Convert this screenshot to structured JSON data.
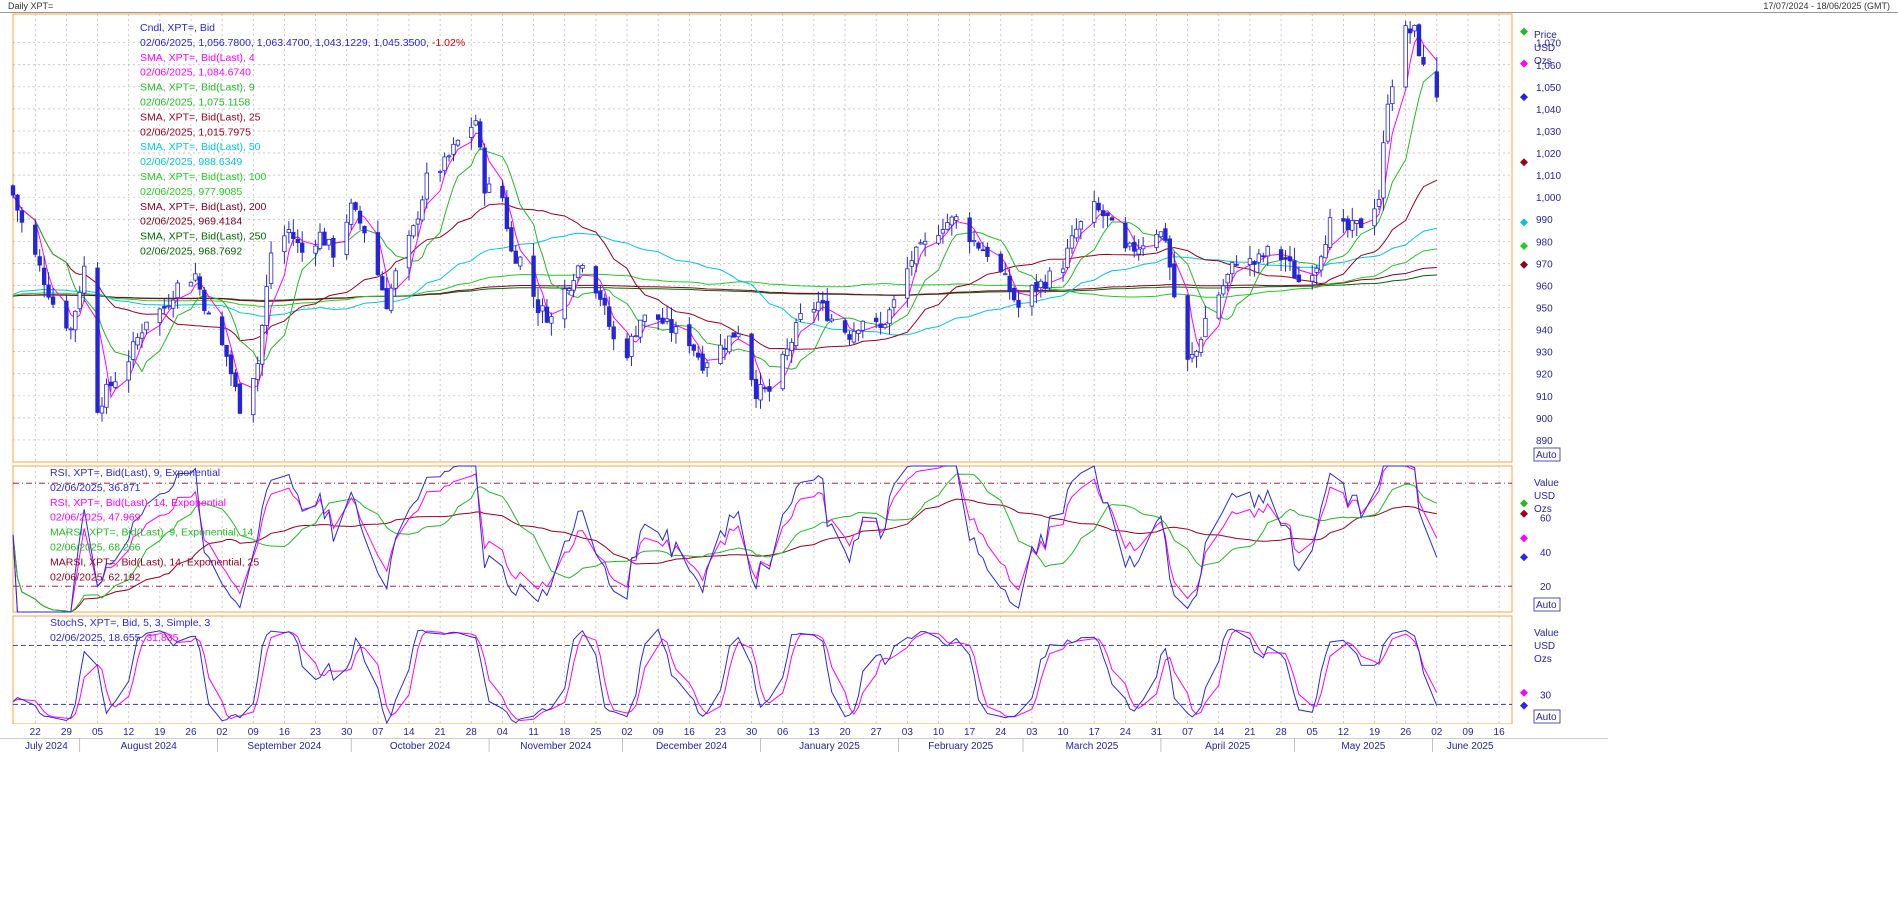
{
  "window": {
    "title": "Daily XPT=",
    "range": "17/07/2024 - 18/06/2025 (GMT)"
  },
  "colors": {
    "bg": "#ffffff",
    "candle": "#2525d8",
    "sma4": "#ff00ff",
    "sma9": "#22bb22",
    "sma25": "#990022",
    "sma50": "#00c8d8",
    "sma100": "#22cc22",
    "sma200": "#880022",
    "sma250": "#006600",
    "rsi9": "#2a2ae0",
    "rsi14": "#ff00ff",
    "marsi9": "#22bb22",
    "marsi14": "#990022",
    "stoch_k": "#2a2ae0",
    "stoch_d": "#ff00ff",
    "grid": "#b8b8b8",
    "panel_border": "#ffa040",
    "ref_line": "#990033",
    "stoch_ref": "#3030c0"
  },
  "price_panel": {
    "legend": [
      {
        "label": "Cndl, XPT=, Bid",
        "color": "#2525d8"
      },
      {
        "label": "02/06/2025, 1,056.7800, 1,063.4700, 1,043.1229, 1,045.3500,",
        "extra": "-1.02%",
        "color": "#2525d8",
        "extra_color": "#e00000"
      },
      {
        "label": "SMA, XPT=, Bid(Last),  4",
        "color": "#ff00ff"
      },
      {
        "label": "02/06/2025, 1,084.6740",
        "color": "#ff00ff"
      },
      {
        "label": "SMA, XPT=, Bid(Last),  9",
        "color": "#22bb22"
      },
      {
        "label": "02/06/2025, 1,075.1158",
        "color": "#22bb22"
      },
      {
        "label": "SMA, XPT=, Bid(Last),  25",
        "color": "#990022"
      },
      {
        "label": "02/06/2025, 1,015.7975",
        "color": "#990022"
      },
      {
        "label": "SMA, XPT=, Bid(Last),  50",
        "color": "#00c8d8"
      },
      {
        "label": "02/06/2025, 988.6349",
        "color": "#00c8d8"
      },
      {
        "label": "SMA, XPT=, Bid(Last),  100",
        "color": "#22cc22"
      },
      {
        "label": "02/06/2025, 977.9085",
        "color": "#22cc22"
      },
      {
        "label": "SMA, XPT=, Bid(Last),  200",
        "color": "#880022"
      },
      {
        "label": "02/06/2025, 969.4184",
        "color": "#880022"
      },
      {
        "label": "SMA, XPT=, Bid(Last),  250",
        "color": "#006600"
      },
      {
        "label": "02/06/2025, 968.7692",
        "color": "#006600"
      }
    ],
    "axis_title": [
      "Price",
      "USD",
      "Ozs"
    ],
    "auto_label": "Auto"
  },
  "rsi_panel": {
    "legend": [
      {
        "label": "RSI, XPT=, Bid(Last),  9, Exponential",
        "color": "#2a2ae0"
      },
      {
        "label": "02/06/2025, 36.871",
        "color": "#2a2ae0"
      },
      {
        "label": "RSI, XPT=, Bid(Last),  14, Exponential",
        "color": "#ff00ff"
      },
      {
        "label": "02/06/2025, 47.969",
        "color": "#ff00ff"
      },
      {
        "label": "MARSI, XPT=, Bid(Last),  9, Exponential, 14",
        "color": "#22bb22"
      },
      {
        "label": "02/06/2025, 68.266",
        "color": "#22bb22"
      },
      {
        "label": "MARSI, XPT=, Bid(Last),  14, Exponential, 25",
        "color": "#990022"
      },
      {
        "label": "02/06/2025, 62.192",
        "color": "#990022"
      }
    ],
    "axis_title": [
      "Value",
      "USD",
      "Ozs"
    ],
    "auto_label": "Auto"
  },
  "stoch_panel": {
    "legend": [
      {
        "label": "StochS, XPT=, Bid,  5, 3, Simple, 3",
        "color": "#2a2ae0"
      },
      {
        "label": "02/06/2025, 18.655,",
        "extra": "31.835",
        "color": "#2a2ae0",
        "extra_color": "#ff00ff"
      }
    ],
    "axis_title": [
      "Value",
      "USD",
      "Ozs"
    ],
    "auto_label": "Auto"
  },
  "chart_data": [
    {
      "type": "candlestick",
      "title": "Cndl, XPT=, Bid",
      "x_day_labels": [
        "22",
        "29",
        "05",
        "12",
        "19",
        "26",
        "02",
        "09",
        "16",
        "23",
        "30",
        "07",
        "14",
        "21",
        "28",
        "04",
        "11",
        "18",
        "25",
        "02",
        "09",
        "16",
        "23",
        "30",
        "06",
        "13",
        "20",
        "27",
        "03",
        "10",
        "17",
        "24",
        "03",
        "10",
        "17",
        "24",
        "31",
        "07",
        "14",
        "21",
        "28",
        "05",
        "12",
        "19",
        "26",
        "02",
        "09",
        "16"
      ],
      "x_month_labels": [
        "July 2024",
        "August 2024",
        "September 2024",
        "October 2024",
        "November 2024",
        "December 2024",
        "January 2025",
        "February 2025",
        "March 2025",
        "April 2025",
        "May 2025",
        "June 2025"
      ],
      "y_ticks": [
        890,
        900,
        910,
        920,
        930,
        940,
        950,
        960,
        970,
        980,
        990,
        1000,
        1010,
        1020,
        1030,
        1040,
        1050,
        1060,
        1070
      ],
      "y_tick_labels": [
        "890",
        "900",
        "910",
        "920",
        "930",
        "940",
        "950",
        "960",
        "970",
        "980",
        "990",
        "1,000",
        "1,010",
        "1,020",
        "1,030",
        "1,040",
        "1,050",
        "1,060",
        "1,070"
      ],
      "ylim": [
        880,
        1083
      ],
      "x_axis": {
        "start": "2024-07-17",
        "end": "2025-06-18"
      },
      "last_bar": {
        "date": "02/06/2025",
        "open": 1056.78,
        "high": 1063.47,
        "low": 1043.1229,
        "close": 1045.35,
        "change": "-1.02%"
      },
      "close_anchors": [
        [
          "2024-07-17",
          1001
        ],
        [
          "2024-07-19",
          988
        ],
        [
          "2024-07-23",
          968
        ],
        [
          "2024-07-26",
          952
        ],
        [
          "2024-07-30",
          940
        ],
        [
          "2024-08-02",
          968
        ],
        [
          "2024-08-05",
          905
        ],
        [
          "2024-08-07",
          912
        ],
        [
          "2024-08-12",
          927
        ],
        [
          "2024-08-16",
          945
        ],
        [
          "2024-08-20",
          950
        ],
        [
          "2024-08-23",
          960
        ],
        [
          "2024-08-27",
          965
        ],
        [
          "2024-08-30",
          945
        ],
        [
          "2024-09-03",
          928
        ],
        [
          "2024-09-06",
          905
        ],
        [
          "2024-09-10",
          925
        ],
        [
          "2024-09-13",
          975
        ],
        [
          "2024-09-17",
          985
        ],
        [
          "2024-09-20",
          975
        ],
        [
          "2024-09-24",
          983
        ],
        [
          "2024-09-27",
          975
        ],
        [
          "2024-10-01",
          995
        ],
        [
          "2024-10-04",
          985
        ],
        [
          "2024-10-09",
          952
        ],
        [
          "2024-10-11",
          965
        ],
        [
          "2024-10-15",
          985
        ],
        [
          "2024-10-18",
          1008
        ],
        [
          "2024-10-22",
          1015
        ],
        [
          "2024-10-25",
          1025
        ],
        [
          "2024-10-29",
          1035
        ],
        [
          "2024-10-31",
          1005
        ],
        [
          "2024-11-04",
          1000
        ],
        [
          "2024-11-06",
          975
        ],
        [
          "2024-11-08",
          972
        ],
        [
          "2024-11-12",
          950
        ],
        [
          "2024-11-15",
          945
        ],
        [
          "2024-11-19",
          962
        ],
        [
          "2024-11-22",
          972
        ],
        [
          "2024-11-26",
          955
        ],
        [
          "2024-11-29",
          935
        ],
        [
          "2024-12-02",
          930
        ],
        [
          "2024-12-05",
          945
        ],
        [
          "2024-12-09",
          945
        ],
        [
          "2024-12-12",
          940
        ],
        [
          "2024-12-16",
          935
        ],
        [
          "2024-12-19",
          925
        ],
        [
          "2024-12-23",
          932
        ],
        [
          "2024-12-27",
          940
        ],
        [
          "2024-12-31",
          912
        ],
        [
          "2025-01-03",
          912
        ],
        [
          "2025-01-07",
          930
        ],
        [
          "2025-01-10",
          945
        ],
        [
          "2025-01-14",
          952
        ],
        [
          "2025-01-17",
          945
        ],
        [
          "2025-01-21",
          938
        ],
        [
          "2025-01-24",
          945
        ],
        [
          "2025-01-28",
          940
        ],
        [
          "2025-01-31",
          952
        ],
        [
          "2025-02-04",
          972
        ],
        [
          "2025-02-07",
          978
        ],
        [
          "2025-02-11",
          988
        ],
        [
          "2025-02-14",
          990
        ],
        [
          "2025-02-18",
          980
        ],
        [
          "2025-02-21",
          975
        ],
        [
          "2025-02-25",
          962
        ],
        [
          "2025-02-28",
          950
        ],
        [
          "2025-03-03",
          958
        ],
        [
          "2025-03-06",
          962
        ],
        [
          "2025-03-10",
          970
        ],
        [
          "2025-03-13",
          985
        ],
        [
          "2025-03-17",
          995
        ],
        [
          "2025-03-20",
          990
        ],
        [
          "2025-03-24",
          975
        ],
        [
          "2025-03-27",
          978
        ],
        [
          "2025-03-31",
          985
        ],
        [
          "2025-04-02",
          982
        ],
        [
          "2025-04-04",
          955
        ],
        [
          "2025-04-07",
          925
        ],
        [
          "2025-04-09",
          930
        ],
        [
          "2025-04-11",
          945
        ],
        [
          "2025-04-15",
          960
        ],
        [
          "2025-04-18",
          972
        ],
        [
          "2025-04-22",
          970
        ],
        [
          "2025-04-25",
          975
        ],
        [
          "2025-04-29",
          972
        ],
        [
          "2025-05-02",
          962
        ],
        [
          "2025-05-06",
          970
        ],
        [
          "2025-05-09",
          988
        ],
        [
          "2025-05-13",
          985
        ],
        [
          "2025-05-16",
          988
        ],
        [
          "2025-05-20",
          1000
        ],
        [
          "2025-05-22",
          1045
        ],
        [
          "2025-05-26",
          1075
        ],
        [
          "2025-05-28",
          1075
        ],
        [
          "2025-05-30",
          1058
        ],
        [
          "2025-06-02",
          1045
        ]
      ],
      "sma_series": [
        {
          "name": "SMA 4",
          "last": 1084.674
        },
        {
          "name": "SMA 9",
          "last": 1075.1158
        },
        {
          "name": "SMA 25",
          "last": 1015.7975
        },
        {
          "name": "SMA 50",
          "last": 988.6349
        },
        {
          "name": "SMA 100",
          "last": 977.9085
        },
        {
          "name": "SMA 200",
          "last": 969.4184
        },
        {
          "name": "SMA 250",
          "last": 968.7692
        }
      ]
    },
    {
      "type": "line",
      "title": "RSI",
      "y_ticks": [
        20,
        40,
        60
      ],
      "ylim": [
        5,
        90
      ],
      "ref_lines": [
        20,
        80
      ],
      "last_values": {
        "RSI 9": 36.871,
        "RSI 14": 47.969,
        "MARSI 9": 68.266,
        "MARSI 14": 62.192
      }
    },
    {
      "type": "line",
      "title": "StochS",
      "y_ticks": [
        30
      ],
      "ylim": [
        0,
        110
      ],
      "ref_lines": [
        20,
        80
      ],
      "last_values": {
        "%K": 18.655,
        "%D": 31.835
      }
    }
  ]
}
